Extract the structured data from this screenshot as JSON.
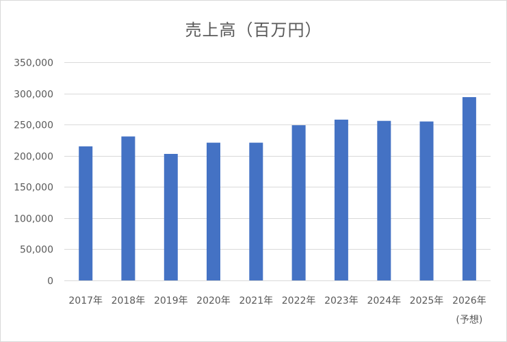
{
  "chart_data": {
    "type": "bar",
    "title": "売上高（百万円）",
    "xlabel": "",
    "ylabel": "",
    "categories": [
      "2017年",
      "2018年",
      "2019年",
      "2020年",
      "2021年",
      "2022年",
      "2023年",
      "2024年",
      "2025年",
      "2026年"
    ],
    "category_sublabels": [
      "",
      "",
      "",
      "",
      "",
      "",
      "",
      "",
      "",
      "(予想)"
    ],
    "y_tick_labels": [
      "0",
      "50,000",
      "100,000",
      "150,000",
      "200,000",
      "250,000",
      "300,000",
      "350,000"
    ],
    "y_ticks": [
      0,
      50000,
      100000,
      150000,
      200000,
      250000,
      300000,
      350000
    ],
    "values": [
      215000,
      231000,
      203000,
      221000,
      221000,
      249000,
      258000,
      256000,
      255000,
      294000
    ],
    "ylim": [
      0,
      350000
    ],
    "grid": true,
    "legend": "none",
    "bar_color": "#4472c4",
    "grid_color": "#d9d9d9"
  }
}
